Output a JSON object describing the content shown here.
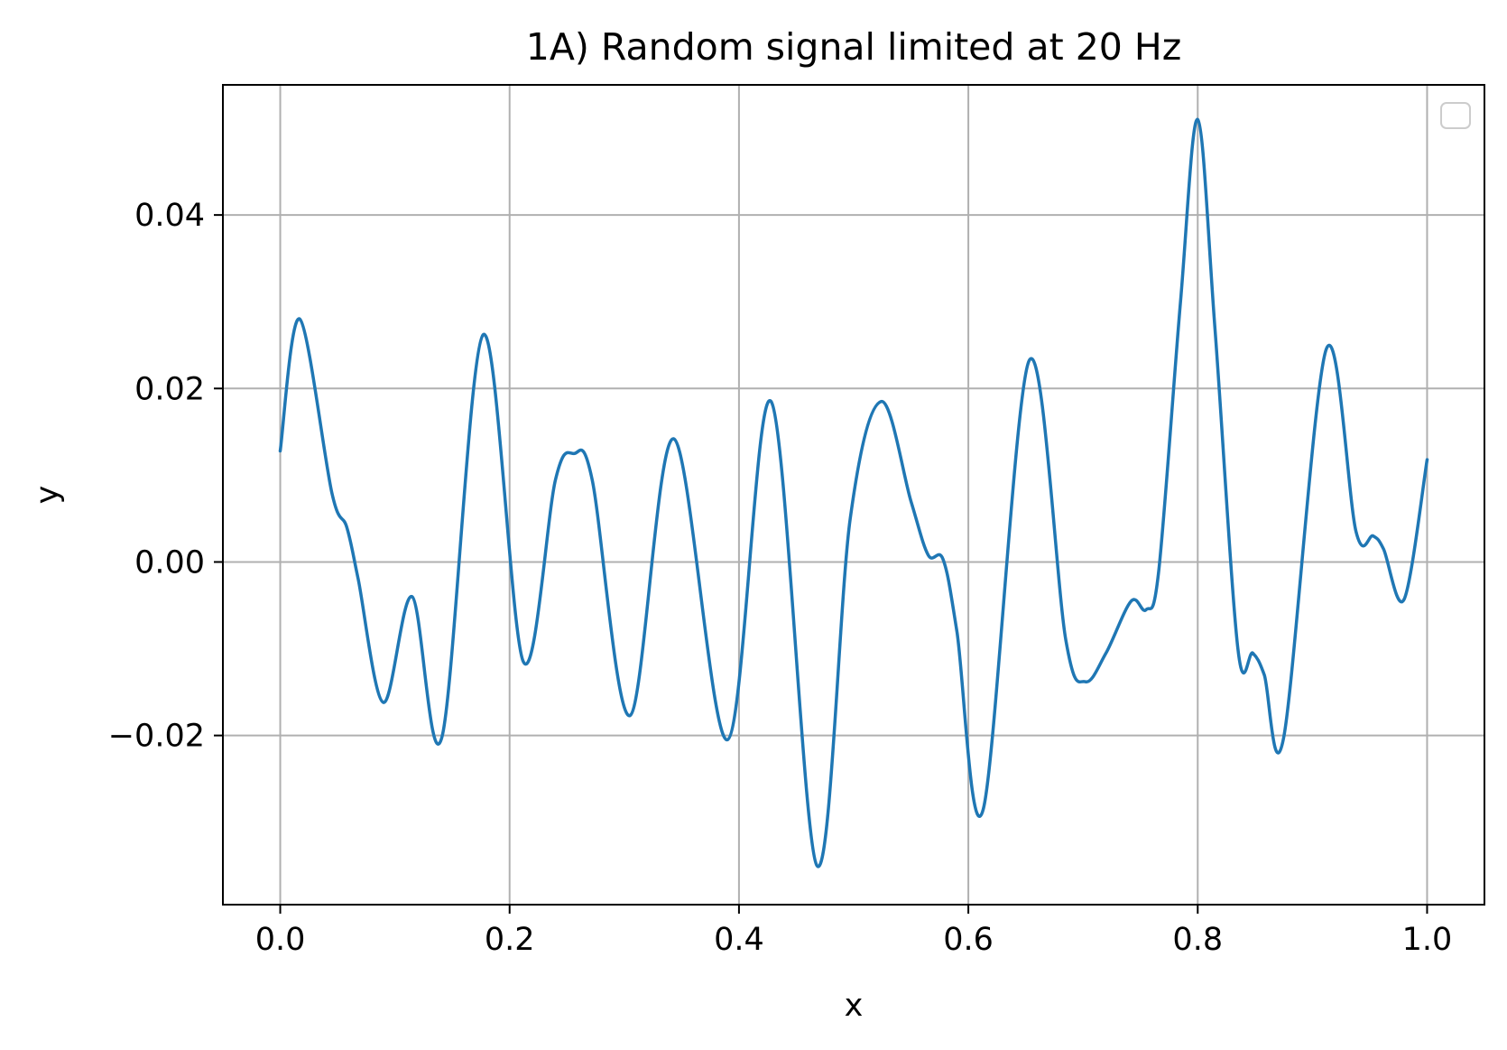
{
  "chart_data": {
    "type": "line",
    "title": "1A) Random signal limited at 20 Hz",
    "xlabel": "x",
    "ylabel": "y",
    "xlim": [
      -0.05,
      1.05
    ],
    "ylim": [
      -0.0395,
      0.055
    ],
    "xticks": [
      0.0,
      0.2,
      0.4,
      0.6,
      0.8,
      1.0
    ],
    "xtick_labels": [
      "0.0",
      "0.2",
      "0.4",
      "0.6",
      "0.8",
      "1.0"
    ],
    "yticks": [
      -0.02,
      0.0,
      0.02,
      0.04
    ],
    "ytick_labels": [
      "−0.02",
      "0.00",
      "0.02",
      "0.04"
    ],
    "grid": true,
    "legend": {
      "placement": "top-right",
      "entries": []
    },
    "line_color": "#1f77b4",
    "grid_color": "#b0b0b0",
    "series": [
      {
        "x": [
          0.0,
          0.017,
          0.045,
          0.058,
          0.068,
          0.09,
          0.115,
          0.141,
          0.177,
          0.212,
          0.24,
          0.256,
          0.272,
          0.305,
          0.343,
          0.39,
          0.428,
          0.468,
          0.497,
          0.524,
          0.55,
          0.565,
          0.578,
          0.59,
          0.613,
          0.653,
          0.685,
          0.702,
          0.72,
          0.742,
          0.755,
          0.766,
          0.785,
          0.8,
          0.815,
          0.835,
          0.848,
          0.858,
          0.875,
          0.912,
          0.938,
          0.953,
          0.962,
          0.98,
          1.0
        ],
        "y": [
          0.0128,
          0.028,
          0.008,
          0.004,
          -0.002,
          -0.0162,
          -0.004,
          -0.0202,
          0.0262,
          -0.0115,
          0.0095,
          0.0125,
          0.0095,
          -0.0177,
          0.0142,
          -0.0205,
          0.0185,
          -0.035,
          0.005,
          0.0185,
          0.007,
          0.0008,
          0.0003,
          -0.008,
          -0.0285,
          0.0232,
          -0.009,
          -0.0138,
          -0.0105,
          -0.0045,
          -0.0055,
          -0.001,
          0.03,
          0.051,
          0.027,
          -0.01,
          -0.0105,
          -0.013,
          -0.0202,
          0.0245,
          0.0035,
          0.003,
          0.0015,
          -0.0043,
          0.0118
        ]
      }
    ]
  }
}
